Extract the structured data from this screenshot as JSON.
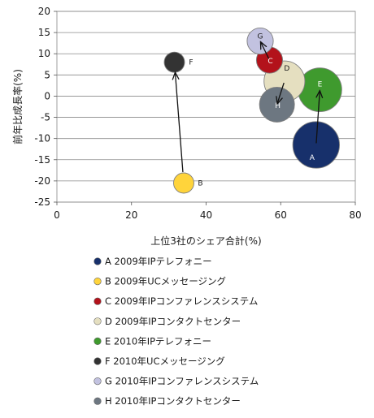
{
  "chart_data": {
    "type": "bubble",
    "xlabel": "上位3社のシェア合計(%)",
    "ylabel": "前年比成長率(%)",
    "xlim": [
      0,
      80
    ],
    "ylim": [
      -25,
      20
    ],
    "x_ticks": [
      0,
      20,
      40,
      60,
      80
    ],
    "y_ticks": [
      20,
      15,
      10,
      5,
      0,
      -5,
      -10,
      -15,
      -20,
      -25
    ],
    "grid": "horizontal",
    "legend_position": "bottom",
    "bubble_size_unit": "relative",
    "series": [
      {
        "label": "A",
        "legend": "A 2009年IPテレフォニー",
        "x": 69.5,
        "y": -11.5,
        "size": 14,
        "color": "#17306b",
        "label_color": "#ffffff"
      },
      {
        "label": "B",
        "legend": "B 2009年UCメッセージング",
        "x": 34,
        "y": -20.5,
        "size": 5,
        "color": "#ffd43b",
        "label_color": "#1a1a1a"
      },
      {
        "label": "C",
        "legend": "C 2009年IPコンファレンスシステム",
        "x": 57,
        "y": 8.5,
        "size": 7,
        "color": "#b3121b",
        "label_color": "#ffffff"
      },
      {
        "label": "D",
        "legend": "D 2009年IPコンタクトセンター",
        "x": 61,
        "y": 3.5,
        "size": 12,
        "color": "#e5dfc0",
        "label_color": "#1a1a1a"
      },
      {
        "label": "E",
        "legend": "E 2010年IPテレフォニー",
        "x": 70.5,
        "y": 1.5,
        "size": 13,
        "color": "#3f9a2e",
        "label_color": "#ffffff"
      },
      {
        "label": "F",
        "legend": "F 2010年UCメッセージング",
        "x": 31.5,
        "y": 8,
        "size": 5,
        "color": "#333333",
        "label_color": "#1a1a1a"
      },
      {
        "label": "G",
        "legend": "G 2010年IPコンファレンスシステム",
        "x": 54.5,
        "y": 13,
        "size": 7,
        "color": "#c2c2e0",
        "label_color": "#1a1a1a"
      },
      {
        "label": "H",
        "legend": "H 2010年IPコンタクトセンター",
        "x": 59,
        "y": -2,
        "size": 10,
        "color": "#6d7781",
        "label_color": "#ffffff"
      }
    ],
    "arrows": [
      {
        "from": "A",
        "to": "E"
      },
      {
        "from": "B",
        "to": "F"
      },
      {
        "from": "C",
        "to": "G"
      },
      {
        "from": "D",
        "to": "H"
      }
    ]
  }
}
